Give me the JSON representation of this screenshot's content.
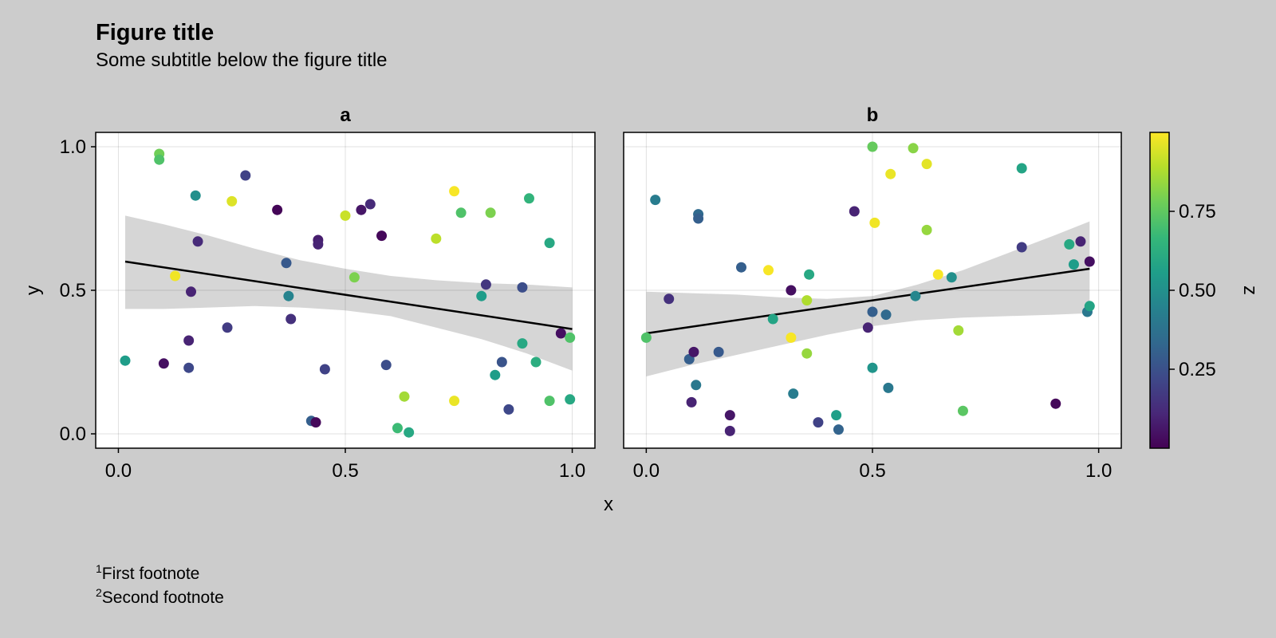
{
  "figure": {
    "title": "Figure title",
    "subtitle": "Some subtitle below the figure title",
    "xlabel": "x",
    "ylabel": "y",
    "footnotes": [
      {
        "marker": "1",
        "text": "First footnote"
      },
      {
        "marker": "2",
        "text": "Second footnote"
      }
    ]
  },
  "colorbar": {
    "label": "z",
    "range": [
      0.0,
      1.0
    ],
    "ticks": [
      "0.25",
      "0.50",
      "0.75"
    ],
    "tick_values": [
      0.25,
      0.5,
      0.75
    ],
    "colormap": [
      "#440154",
      "#482878",
      "#3e4989",
      "#31688e",
      "#26828e",
      "#1f9e89",
      "#35b779",
      "#6ece58",
      "#b5de2b",
      "#fde725"
    ]
  },
  "chart_data": [
    {
      "type": "scatter",
      "title": "a",
      "xlabel": "x",
      "ylabel": "y",
      "xlim": [
        -0.05,
        1.05
      ],
      "ylim": [
        -0.05,
        1.05
      ],
      "xticks": [
        "0.0",
        "0.5",
        "1.0"
      ],
      "xtick_values": [
        0,
        0.5,
        1
      ],
      "yticks": [
        "0.0",
        "0.5",
        "1.0"
      ],
      "ytick_values": [
        0,
        0.5,
        1
      ],
      "grid": true,
      "fit": {
        "x0": 0.015,
        "y0": 0.6,
        "x1": 1.0,
        "y1": 0.365
      },
      "band": {
        "x": [
          0.015,
          0.1,
          0.2,
          0.3,
          0.4,
          0.5,
          0.6,
          0.7,
          0.8,
          0.9,
          1.0
        ],
        "upper": [
          0.76,
          0.73,
          0.69,
          0.645,
          0.605,
          0.575,
          0.55,
          0.535,
          0.525,
          0.52,
          0.51
        ],
        "lower": [
          0.435,
          0.435,
          0.44,
          0.445,
          0.44,
          0.43,
          0.41,
          0.37,
          0.33,
          0.28,
          0.22
        ]
      },
      "points": [
        {
          "x": 0.015,
          "y": 0.255,
          "z": 0.55
        },
        {
          "x": 0.09,
          "y": 0.975,
          "z": 0.78
        },
        {
          "x": 0.09,
          "y": 0.955,
          "z": 0.72
        },
        {
          "x": 0.1,
          "y": 0.245,
          "z": 0.04
        },
        {
          "x": 0.125,
          "y": 0.55,
          "z": 0.98
        },
        {
          "x": 0.155,
          "y": 0.23,
          "z": 0.22
        },
        {
          "x": 0.155,
          "y": 0.325,
          "z": 0.1
        },
        {
          "x": 0.16,
          "y": 0.495,
          "z": 0.1
        },
        {
          "x": 0.17,
          "y": 0.83,
          "z": 0.5
        },
        {
          "x": 0.175,
          "y": 0.67,
          "z": 0.12
        },
        {
          "x": 0.24,
          "y": 0.37,
          "z": 0.18
        },
        {
          "x": 0.25,
          "y": 0.81,
          "z": 0.95
        },
        {
          "x": 0.28,
          "y": 0.9,
          "z": 0.2
        },
        {
          "x": 0.35,
          "y": 0.78,
          "z": 0.01
        },
        {
          "x": 0.37,
          "y": 0.595,
          "z": 0.28
        },
        {
          "x": 0.375,
          "y": 0.48,
          "z": 0.45
        },
        {
          "x": 0.38,
          "y": 0.4,
          "z": 0.14
        },
        {
          "x": 0.425,
          "y": 0.045,
          "z": 0.3
        },
        {
          "x": 0.435,
          "y": 0.04,
          "z": 0.02
        },
        {
          "x": 0.44,
          "y": 0.675,
          "z": 0.08
        },
        {
          "x": 0.44,
          "y": 0.66,
          "z": 0.1
        },
        {
          "x": 0.455,
          "y": 0.225,
          "z": 0.2
        },
        {
          "x": 0.5,
          "y": 0.76,
          "z": 0.92
        },
        {
          "x": 0.52,
          "y": 0.545,
          "z": 0.8
        },
        {
          "x": 0.535,
          "y": 0.78,
          "z": 0.06
        },
        {
          "x": 0.555,
          "y": 0.8,
          "z": 0.12
        },
        {
          "x": 0.58,
          "y": 0.69,
          "z": 0.02
        },
        {
          "x": 0.59,
          "y": 0.24,
          "z": 0.24
        },
        {
          "x": 0.615,
          "y": 0.02,
          "z": 0.68
        },
        {
          "x": 0.63,
          "y": 0.13,
          "z": 0.86
        },
        {
          "x": 0.64,
          "y": 0.005,
          "z": 0.6
        },
        {
          "x": 0.7,
          "y": 0.68,
          "z": 0.9
        },
        {
          "x": 0.74,
          "y": 0.845,
          "z": 0.99
        },
        {
          "x": 0.74,
          "y": 0.115,
          "z": 0.97
        },
        {
          "x": 0.755,
          "y": 0.77,
          "z": 0.72
        },
        {
          "x": 0.8,
          "y": 0.48,
          "z": 0.55
        },
        {
          "x": 0.81,
          "y": 0.52,
          "z": 0.16
        },
        {
          "x": 0.82,
          "y": 0.77,
          "z": 0.8
        },
        {
          "x": 0.83,
          "y": 0.205,
          "z": 0.55
        },
        {
          "x": 0.845,
          "y": 0.25,
          "z": 0.26
        },
        {
          "x": 0.86,
          "y": 0.085,
          "z": 0.22
        },
        {
          "x": 0.89,
          "y": 0.51,
          "z": 0.24
        },
        {
          "x": 0.89,
          "y": 0.315,
          "z": 0.6
        },
        {
          "x": 0.905,
          "y": 0.82,
          "z": 0.65
        },
        {
          "x": 0.92,
          "y": 0.25,
          "z": 0.62
        },
        {
          "x": 0.95,
          "y": 0.665,
          "z": 0.6
        },
        {
          "x": 0.95,
          "y": 0.115,
          "z": 0.72
        },
        {
          "x": 0.975,
          "y": 0.35,
          "z": 0.04
        },
        {
          "x": 0.995,
          "y": 0.335,
          "z": 0.72
        },
        {
          "x": 0.995,
          "y": 0.12,
          "z": 0.6
        }
      ]
    },
    {
      "type": "scatter",
      "title": "b",
      "xlabel": "x",
      "ylabel": "y",
      "xlim": [
        -0.05,
        1.05
      ],
      "ylim": [
        -0.05,
        1.05
      ],
      "xticks": [
        "0.0",
        "0.5",
        "1.0"
      ],
      "xtick_values": [
        0,
        0.5,
        1
      ],
      "yticks": [
        "0.0",
        "0.5",
        "1.0"
      ],
      "ytick_values": [
        0,
        0.5,
        1
      ],
      "grid": true,
      "fit": {
        "x0": 0.0,
        "y0": 0.35,
        "x1": 0.98,
        "y1": 0.575
      },
      "band": {
        "x": [
          0.0,
          0.1,
          0.2,
          0.3,
          0.4,
          0.5,
          0.6,
          0.7,
          0.8,
          0.9,
          0.98
        ],
        "upper": [
          0.495,
          0.49,
          0.485,
          0.475,
          0.47,
          0.48,
          0.52,
          0.57,
          0.63,
          0.69,
          0.74
        ],
        "lower": [
          0.2,
          0.24,
          0.275,
          0.31,
          0.345,
          0.375,
          0.395,
          0.405,
          0.41,
          0.415,
          0.42
        ]
      },
      "points": [
        {
          "x": 0.0,
          "y": 0.335,
          "z": 0.72
        },
        {
          "x": 0.02,
          "y": 0.815,
          "z": 0.42
        },
        {
          "x": 0.05,
          "y": 0.47,
          "z": 0.14
        },
        {
          "x": 0.095,
          "y": 0.26,
          "z": 0.3
        },
        {
          "x": 0.1,
          "y": 0.11,
          "z": 0.1
        },
        {
          "x": 0.105,
          "y": 0.285,
          "z": 0.06
        },
        {
          "x": 0.11,
          "y": 0.17,
          "z": 0.4
        },
        {
          "x": 0.115,
          "y": 0.765,
          "z": 0.34
        },
        {
          "x": 0.115,
          "y": 0.75,
          "z": 0.3
        },
        {
          "x": 0.16,
          "y": 0.285,
          "z": 0.28
        },
        {
          "x": 0.185,
          "y": 0.065,
          "z": 0.06
        },
        {
          "x": 0.185,
          "y": 0.01,
          "z": 0.1
        },
        {
          "x": 0.21,
          "y": 0.58,
          "z": 0.3
        },
        {
          "x": 0.27,
          "y": 0.57,
          "z": 0.99
        },
        {
          "x": 0.28,
          "y": 0.4,
          "z": 0.58
        },
        {
          "x": 0.32,
          "y": 0.5,
          "z": 0.04
        },
        {
          "x": 0.32,
          "y": 0.335,
          "z": 0.99
        },
        {
          "x": 0.325,
          "y": 0.14,
          "z": 0.42
        },
        {
          "x": 0.355,
          "y": 0.465,
          "z": 0.88
        },
        {
          "x": 0.355,
          "y": 0.28,
          "z": 0.84
        },
        {
          "x": 0.36,
          "y": 0.555,
          "z": 0.6
        },
        {
          "x": 0.38,
          "y": 0.04,
          "z": 0.2
        },
        {
          "x": 0.42,
          "y": 0.065,
          "z": 0.56
        },
        {
          "x": 0.425,
          "y": 0.015,
          "z": 0.32
        },
        {
          "x": 0.46,
          "y": 0.775,
          "z": 0.1
        },
        {
          "x": 0.49,
          "y": 0.37,
          "z": 0.1
        },
        {
          "x": 0.5,
          "y": 1.0,
          "z": 0.76
        },
        {
          "x": 0.5,
          "y": 0.425,
          "z": 0.3
        },
        {
          "x": 0.5,
          "y": 0.23,
          "z": 0.52
        },
        {
          "x": 0.505,
          "y": 0.735,
          "z": 0.98
        },
        {
          "x": 0.53,
          "y": 0.415,
          "z": 0.34
        },
        {
          "x": 0.535,
          "y": 0.16,
          "z": 0.4
        },
        {
          "x": 0.54,
          "y": 0.905,
          "z": 0.97
        },
        {
          "x": 0.59,
          "y": 0.995,
          "z": 0.82
        },
        {
          "x": 0.595,
          "y": 0.48,
          "z": 0.46
        },
        {
          "x": 0.62,
          "y": 0.94,
          "z": 0.96
        },
        {
          "x": 0.62,
          "y": 0.71,
          "z": 0.84
        },
        {
          "x": 0.645,
          "y": 0.555,
          "z": 0.99
        },
        {
          "x": 0.675,
          "y": 0.545,
          "z": 0.5
        },
        {
          "x": 0.69,
          "y": 0.36,
          "z": 0.86
        },
        {
          "x": 0.7,
          "y": 0.08,
          "z": 0.74
        },
        {
          "x": 0.83,
          "y": 0.925,
          "z": 0.58
        },
        {
          "x": 0.83,
          "y": 0.65,
          "z": 0.18
        },
        {
          "x": 0.905,
          "y": 0.105,
          "z": 0.02
        },
        {
          "x": 0.935,
          "y": 0.66,
          "z": 0.6
        },
        {
          "x": 0.945,
          "y": 0.59,
          "z": 0.55
        },
        {
          "x": 0.96,
          "y": 0.67,
          "z": 0.1
        },
        {
          "x": 0.975,
          "y": 0.425,
          "z": 0.4
        },
        {
          "x": 0.98,
          "y": 0.6,
          "z": 0.04
        },
        {
          "x": 0.98,
          "y": 0.445,
          "z": 0.58
        }
      ]
    }
  ]
}
